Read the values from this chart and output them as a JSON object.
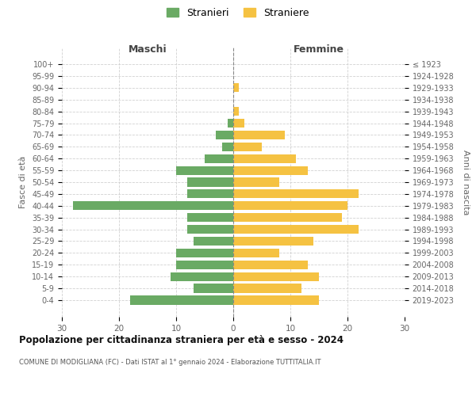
{
  "age_groups": [
    "100+",
    "95-99",
    "90-94",
    "85-89",
    "80-84",
    "75-79",
    "70-74",
    "65-69",
    "60-64",
    "55-59",
    "50-54",
    "45-49",
    "40-44",
    "35-39",
    "30-34",
    "25-29",
    "20-24",
    "15-19",
    "10-14",
    "5-9",
    "0-4"
  ],
  "birth_years": [
    "≤ 1923",
    "1924-1928",
    "1929-1933",
    "1934-1938",
    "1939-1943",
    "1944-1948",
    "1949-1953",
    "1954-1958",
    "1959-1963",
    "1964-1968",
    "1969-1973",
    "1974-1978",
    "1979-1983",
    "1984-1988",
    "1989-1993",
    "1994-1998",
    "1999-2003",
    "2004-2008",
    "2009-2013",
    "2014-2018",
    "2019-2023"
  ],
  "males": [
    0,
    0,
    0,
    0,
    0,
    1,
    3,
    2,
    5,
    10,
    8,
    8,
    28,
    8,
    8,
    7,
    10,
    10,
    11,
    7,
    18
  ],
  "females": [
    0,
    0,
    1,
    0,
    1,
    2,
    9,
    5,
    11,
    13,
    8,
    22,
    20,
    19,
    22,
    14,
    8,
    13,
    15,
    12,
    15
  ],
  "male_color": "#6aaa64",
  "female_color": "#f5c242",
  "title": "Popolazione per cittadinanza straniera per età e sesso - 2024",
  "subtitle": "COMUNE DI MODIGLIANA (FC) - Dati ISTAT al 1° gennaio 2024 - Elaborazione TUTTITALIA.IT",
  "left_label": "Maschi",
  "right_label": "Femmine",
  "y_left_label": "Fasce di età",
  "y_right_label": "Anni di nascita",
  "legend_male": "Stranieri",
  "legend_female": "Straniere",
  "xlim": 30,
  "background_color": "#ffffff",
  "grid_color": "#cccccc"
}
